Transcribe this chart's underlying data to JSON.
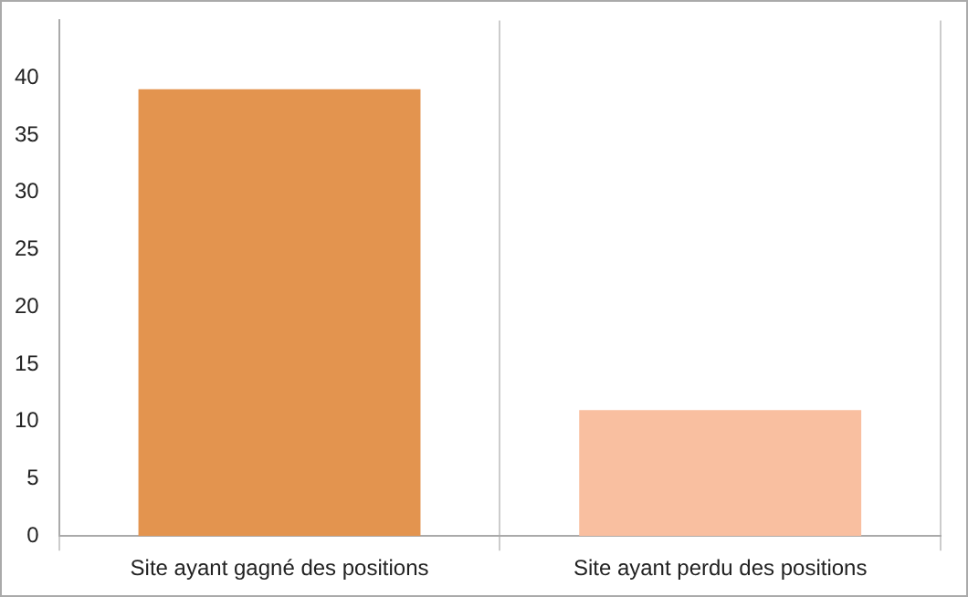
{
  "chart_data": {
    "type": "bar",
    "categories": [
      "Site ayant gagné des positions",
      "Site ayant perdu des positions"
    ],
    "values": [
      39,
      11
    ],
    "colors": [
      "#e3944f",
      "#f9bfa0"
    ],
    "ylim": [
      0,
      45
    ],
    "yticks": [
      0,
      5,
      10,
      15,
      20,
      25,
      30,
      35,
      40
    ],
    "grid": "x"
  }
}
